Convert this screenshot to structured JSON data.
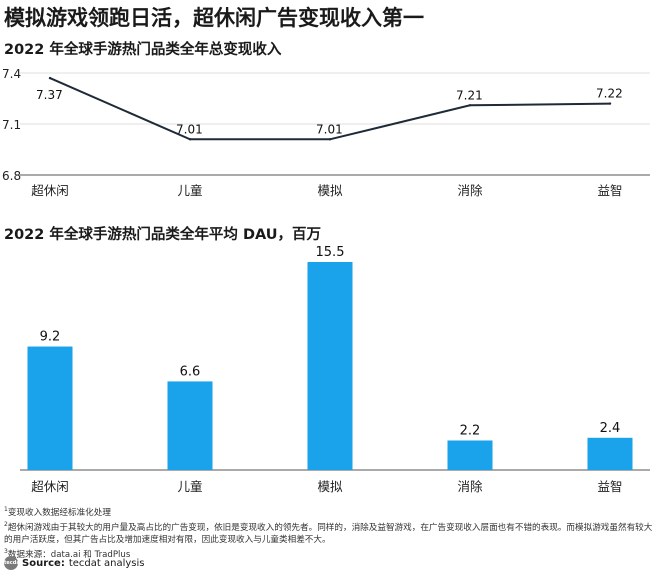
{
  "headline": "模拟游戏领跑日活，超休闲广告变现收入第一",
  "chart_data": [
    {
      "type": "line",
      "title": "2022 年全球手游热门品类全年总变现收入",
      "categories": [
        "超休闲",
        "儿童",
        "模拟",
        "消除",
        "益智"
      ],
      "values": [
        7.37,
        7.01,
        7.01,
        7.21,
        7.22
      ],
      "yticks": [
        6.8,
        7.1,
        7.4
      ],
      "ylim": [
        6.8,
        7.4
      ],
      "grid": true,
      "color": "#1f2a38"
    },
    {
      "type": "bar",
      "title": "2022 年全球手游热门品类全年平均 DAU，百万",
      "categories": [
        "超休闲",
        "儿童",
        "模拟",
        "消除",
        "益智"
      ],
      "values": [
        9.2,
        6.6,
        15.5,
        2.2,
        2.4
      ],
      "ylim": [
        0,
        15.5
      ],
      "color": "#1aa3ea"
    }
  ],
  "notes": {
    "n1_mark": "1",
    "n1": "变现收入数据经标准化处理",
    "n2_mark": "2",
    "n2": "超休闲游戏由于其较大的用户量及高占比的广告变现，依旧是变现收入的领先者。同样的，消除及益智游戏，在广告变现收入层面也有不错的表现。而模拟游戏虽然有较大的用户活跃度，但其广告占比及增加速度相对有限，因此变现收入与儿童类相差不大。",
    "n3_mark": "3",
    "n3": "数据来源：data.ai 和 TradPlus"
  },
  "source": {
    "logo": "tecdat",
    "label": "Source:",
    "text": "tecdat analysis"
  }
}
